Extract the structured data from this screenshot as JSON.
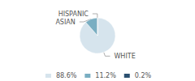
{
  "chart_data": {
    "type": "pie",
    "categories": [
      "WHITE",
      "ASIAN",
      "HISPANIC"
    ],
    "values": [
      88.6,
      11.2,
      0.2
    ],
    "value_labels": [
      "88.6%",
      "11.2%",
      "0.2%"
    ],
    "colors": [
      "#d6e4ed",
      "#7aaec2",
      "#2b5070"
    ],
    "legend": "bottom"
  }
}
